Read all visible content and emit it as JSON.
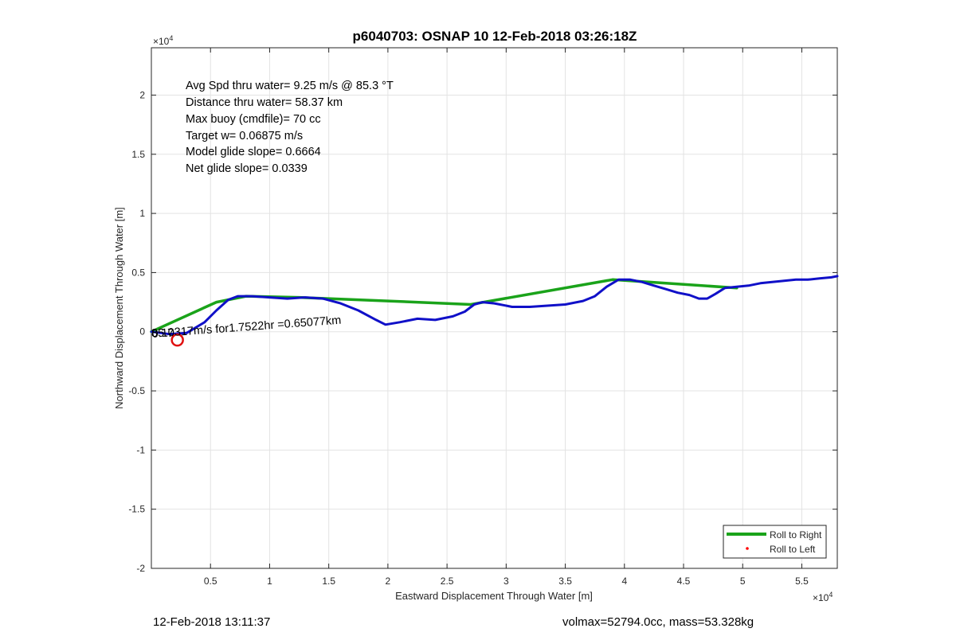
{
  "chart_data": {
    "type": "line",
    "title": "p6040703: OSNAP 10 12-Feb-2018 03:26:18Z",
    "xlabel": "Eastward Displacement Through Water [m]",
    "ylabel": "Northward Displacement Through Water [m]",
    "x_multiplier": "×10",
    "x_exponent": "4",
    "y_multiplier": "×10",
    "y_exponent": "4",
    "xlim": [
      0,
      58000
    ],
    "ylim": [
      -20000,
      24000
    ],
    "xticks": [
      5000,
      10000,
      15000,
      20000,
      25000,
      30000,
      35000,
      40000,
      45000,
      50000,
      55000
    ],
    "xtick_labels": [
      "0.5",
      "1",
      "1.5",
      "2",
      "2.5",
      "3",
      "3.5",
      "4",
      "4.5",
      "5",
      "5.5"
    ],
    "yticks": [
      -20000,
      -15000,
      -10000,
      -5000,
      0,
      5000,
      10000,
      15000,
      20000
    ],
    "ytick_labels": [
      "-2",
      "-1.5",
      "-1",
      "-0.5",
      "0",
      "0.5",
      "1",
      "1.5",
      "2"
    ],
    "grid": true,
    "legend_position": "bottom-right",
    "series": [
      {
        "name": "Roll to Right",
        "color": "#1aa31a",
        "style": "line",
        "x": [
          0,
          5500,
          8000,
          12500,
          20000,
          27000,
          39000,
          49500
        ],
        "y": [
          0,
          2500,
          3000,
          2900,
          2600,
          2300,
          4400,
          3700
        ]
      },
      {
        "name": "Roll to Left",
        "color": "#ff0000",
        "style": "points",
        "x": [],
        "y": []
      },
      {
        "name": "",
        "color": "#1010c8",
        "style": "line",
        "x": [
          0,
          1500,
          3000,
          4500,
          5500,
          6500,
          7300,
          8500,
          10000,
          11500,
          13000,
          14500,
          16000,
          17500,
          19000,
          19800,
          21000,
          22500,
          24000,
          25500,
          26500,
          27300,
          28000,
          29000,
          30500,
          32000,
          33500,
          35000,
          36500,
          37500,
          38500,
          39500,
          40500,
          41500,
          42500,
          43500,
          44500,
          45500,
          46300,
          47000,
          47700,
          48500,
          49500,
          50500,
          51500,
          52500,
          53500,
          54500,
          55500,
          56500,
          57500,
          58000
        ],
        "y": [
          0,
          -200,
          -100,
          800,
          1800,
          2700,
          3000,
          3000,
          2900,
          2800,
          2900,
          2800,
          2400,
          1800,
          1000,
          600,
          800,
          1100,
          1000,
          1300,
          1700,
          2300,
          2500,
          2400,
          2100,
          2100,
          2200,
          2300,
          2600,
          3000,
          3800,
          4400,
          4400,
          4200,
          3900,
          3600,
          3300,
          3100,
          2800,
          2800,
          3200,
          3700,
          3800,
          3900,
          4100,
          4200,
          4300,
          4400,
          4400,
          4500,
          4600,
          4700
        ]
      }
    ],
    "start_marker": {
      "x": 2200,
      "y": -700,
      "color": "#e01010"
    },
    "annotations": [
      "Avg Spd thru water=  9.25 m/s @  85.3 °T",
      "Distance thru water= 58.37 km",
      "Max buoy (cmdfile)= 70 cc",
      "Target w= 0.06875 m/s",
      "Model glide slope= 0.6664",
      "Net glide slope= 0.0339"
    ],
    "current_label": "0.10317m/s for1.7522hr =0.65077km",
    "overlap_label": "85.7"
  },
  "footer": {
    "datetime": "12-Feb-2018 13:11:37",
    "mass_info": "volmax=52794.0cc, mass=53.328kg"
  }
}
